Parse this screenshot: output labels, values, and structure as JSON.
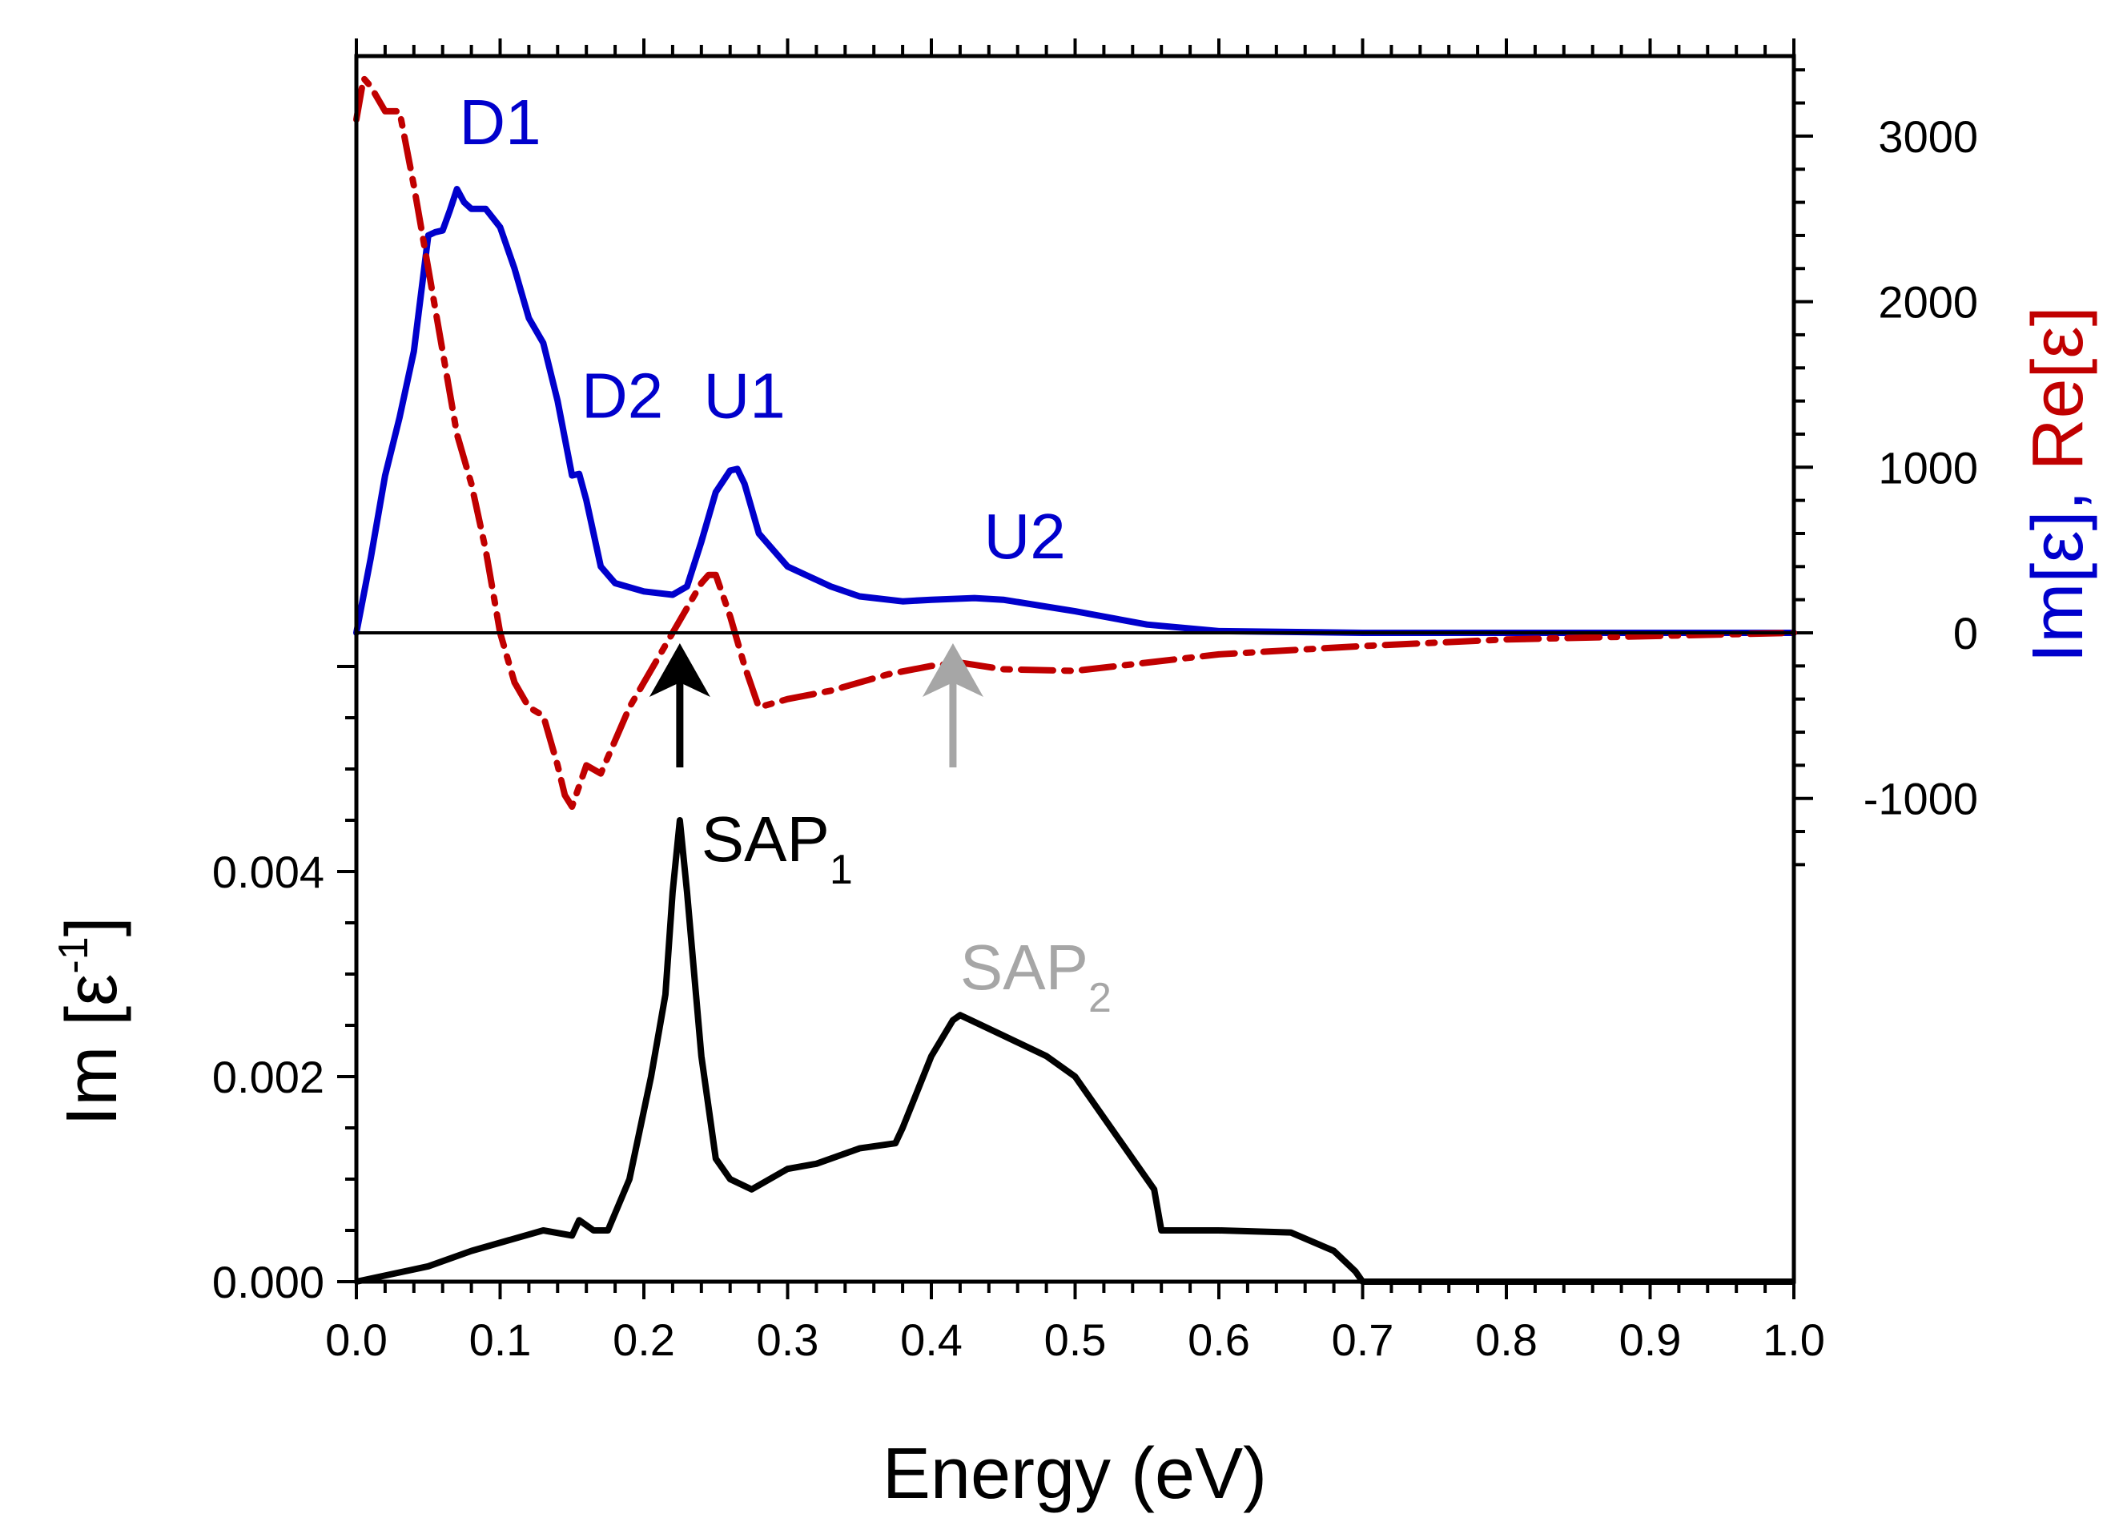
{
  "chart_data": {
    "type": "line",
    "x_axis": {
      "label": "Energy (eV)",
      "range": [
        0,
        1.0
      ],
      "ticks": [
        "0.0",
        "0.1",
        "0.2",
        "0.3",
        "0.4",
        "0.5",
        "0.6",
        "0.7",
        "0.8",
        "0.9",
        "1.0"
      ]
    },
    "top_panel": {
      "y_axis_right": {
        "label_parts": [
          "Im[ε]",
          ", ",
          "Re[ε]"
        ],
        "range": [
          -1500,
          3500
        ],
        "ticks": [
          "3000",
          "2000",
          "1000",
          "0",
          "-1000"
        ]
      },
      "series": [
        {
          "name": "Im[ε]",
          "color": "#0000cc",
          "style": "solid",
          "x": [
            0,
            0.01,
            0.02,
            0.03,
            0.04,
            0.05,
            0.055,
            0.06,
            0.065,
            0.07,
            0.075,
            0.08,
            0.09,
            0.1,
            0.11,
            0.12,
            0.13,
            0.14,
            0.15,
            0.155,
            0.16,
            0.17,
            0.18,
            0.2,
            0.22,
            0.23,
            0.24,
            0.25,
            0.26,
            0.265,
            0.27,
            0.28,
            0.3,
            0.33,
            0.35,
            0.38,
            0.4,
            0.43,
            0.45,
            0.5,
            0.55,
            0.6,
            0.7,
            0.8,
            1.0
          ],
          "y": [
            0,
            450,
            950,
            1300,
            1700,
            2400,
            2420,
            2430,
            2550,
            2680,
            2600,
            2560,
            2560,
            2450,
            2200,
            1900,
            1750,
            1400,
            950,
            960,
            800,
            400,
            300,
            250,
            230,
            280,
            550,
            850,
            980,
            990,
            900,
            600,
            400,
            280,
            220,
            190,
            200,
            210,
            200,
            130,
            50,
            10,
            0,
            0,
            0
          ]
        },
        {
          "name": "Re[ε]",
          "color": "#c00000",
          "style": "dash-dot",
          "x": [
            0,
            0.005,
            0.01,
            0.02,
            0.03,
            0.04,
            0.05,
            0.06,
            0.07,
            0.08,
            0.09,
            0.1,
            0.11,
            0.12,
            0.13,
            0.14,
            0.145,
            0.15,
            0.16,
            0.17,
            0.18,
            0.19,
            0.2,
            0.21,
            0.22,
            0.23,
            0.24,
            0.245,
            0.25,
            0.26,
            0.27,
            0.28,
            0.3,
            0.33,
            0.37,
            0.4,
            0.42,
            0.45,
            0.5,
            0.6,
            0.7,
            0.8,
            1.0
          ],
          "y": [
            3100,
            3350,
            3300,
            3150,
            3150,
            2700,
            2200,
            1700,
            1200,
            900,
            500,
            0,
            -300,
            -450,
            -500,
            -800,
            -980,
            -1050,
            -800,
            -850,
            -650,
            -450,
            -300,
            -150,
            0,
            150,
            300,
            350,
            350,
            100,
            -200,
            -450,
            -400,
            -350,
            -250,
            -200,
            -180,
            -220,
            -230,
            -130,
            -80,
            -40,
            0
          ]
        }
      ],
      "arrows": [
        {
          "x": 0.225,
          "color": "#000000"
        },
        {
          "x": 0.415,
          "color": "#a6a6a6"
        }
      ],
      "annotations": [
        {
          "text": "D1",
          "x": 0.1,
          "y": 2950,
          "color": "#0000cc"
        },
        {
          "text": "D2",
          "x": 0.185,
          "y": 1300,
          "color": "#0000cc"
        },
        {
          "text": "U1",
          "x": 0.27,
          "y": 1300,
          "color": "#0000cc"
        },
        {
          "text": "U2",
          "x": 0.465,
          "y": 450,
          "color": "#0000cc"
        }
      ]
    },
    "bottom_panel": {
      "y_axis_left": {
        "label": "Im [ε",
        "label_sup": "-1",
        "label_close": "]",
        "range": [
          0,
          0.006
        ],
        "ticks": [
          "0.000",
          "0.002",
          "0.004"
        ]
      },
      "series": [
        {
          "name": "Im[ε^-1]",
          "color": "#000000",
          "style": "solid",
          "x": [
            0,
            0.05,
            0.08,
            0.13,
            0.15,
            0.155,
            0.165,
            0.175,
            0.19,
            0.205,
            0.215,
            0.22,
            0.225,
            0.23,
            0.24,
            0.25,
            0.26,
            0.275,
            0.3,
            0.32,
            0.35,
            0.375,
            0.38,
            0.4,
            0.415,
            0.42,
            0.45,
            0.48,
            0.5,
            0.53,
            0.555,
            0.56,
            0.6,
            0.65,
            0.68,
            0.695,
            0.7,
            1.0
          ],
          "y": [
            0,
            0.00015,
            0.0003,
            0.0005,
            0.00045,
            0.0006,
            0.0005,
            0.0005,
            0.001,
            0.002,
            0.0028,
            0.0038,
            0.0045,
            0.0038,
            0.0022,
            0.0012,
            0.001,
            0.0009,
            0.0011,
            0.00115,
            0.0013,
            0.00135,
            0.0015,
            0.0022,
            0.00255,
            0.0026,
            0.0024,
            0.0022,
            0.002,
            0.0014,
            0.0009,
            0.0005,
            0.0005,
            0.00048,
            0.0003,
            0.0001,
            0,
            0
          ]
        }
      ],
      "annotations": [
        {
          "text": "SAP",
          "sub": "1",
          "x": 0.24,
          "y": 0.0041,
          "color": "#000000"
        },
        {
          "text": "SAP",
          "sub": "2",
          "x": 0.42,
          "y": 0.00285,
          "color": "#a6a6a6"
        }
      ]
    }
  }
}
